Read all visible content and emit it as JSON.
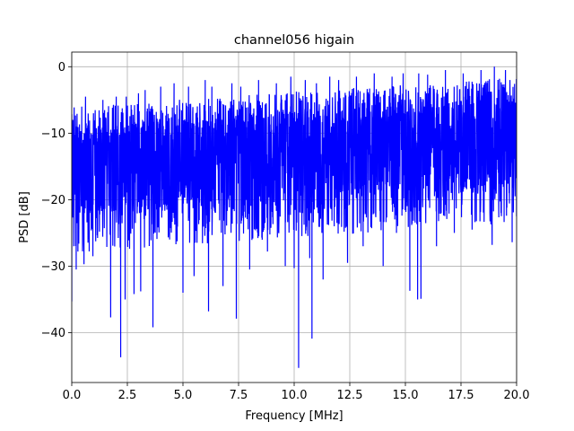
{
  "chart_data": {
    "type": "line",
    "title": "channel056 higain",
    "xlabel": "Frequency [MHz]",
    "ylabel": "PSD [dB]",
    "xlim": [
      0,
      20
    ],
    "ylim": [
      -47.5,
      2.2
    ],
    "grid": true,
    "x_ticks": [
      0.0,
      2.5,
      5.0,
      7.5,
      10.0,
      12.5,
      15.0,
      17.5,
      20.0
    ],
    "x_tick_labels": [
      "0.0",
      "2.5",
      "5.0",
      "7.5",
      "10.0",
      "12.5",
      "15.0",
      "17.5",
      "20.0"
    ],
    "y_ticks": [
      0,
      -10,
      -20,
      -30,
      -40
    ],
    "y_tick_labels": [
      "0",
      "−10",
      "−20",
      "−30",
      "−40"
    ],
    "series": [
      {
        "color": "#0000ff",
        "description_points": {
          "x": [
            0.0,
            0.05,
            0.2,
            0.45,
            0.55,
            0.62,
            0.95,
            1.4,
            1.75,
            2.0,
            2.2,
            2.4,
            2.45,
            2.8,
            3.0,
            3.1,
            3.3,
            3.65,
            4.0,
            4.4,
            4.6,
            5.0,
            5.25,
            5.5,
            6.0,
            6.15,
            6.3,
            6.8,
            7.2,
            7.4,
            7.6,
            8.0,
            8.4,
            8.8,
            9.2,
            9.6,
            9.85,
            10.0,
            10.2,
            10.5,
            10.7,
            10.8,
            11.0,
            11.3,
            11.6,
            11.8,
            12.0,
            12.4,
            12.8,
            13.1,
            13.6,
            14.0,
            14.4,
            14.6,
            14.9,
            15.2,
            15.55,
            15.6,
            15.7,
            16.0,
            16.4,
            16.8,
            17.2,
            17.6,
            18.0,
            18.4,
            18.9,
            19.0,
            19.3,
            19.5,
            19.8,
            20.0
          ],
          "y": [
            -35.3,
            -8.0,
            -30.5,
            -6.0,
            -29.7,
            -4.5,
            -28.5,
            -5.0,
            -37.7,
            -4.5,
            -43.7,
            -35.0,
            -4.5,
            -34.2,
            -4.0,
            -33.8,
            -3.5,
            -39.2,
            -3.0,
            -26.0,
            -2.5,
            -34.0,
            -3.0,
            -31.5,
            -2.0,
            -36.8,
            -3.0,
            -33.0,
            -2.5,
            -37.9,
            -3.0,
            -30.5,
            -2.0,
            -27.8,
            -2.5,
            -30.0,
            -1.5,
            -30.3,
            -45.3,
            -2.0,
            -28.8,
            -40.9,
            -2.5,
            -32.0,
            -1.5,
            -24.0,
            -2.0,
            -29.5,
            -1.5,
            -27.0,
            -1.0,
            -30.0,
            -1.5,
            -25.0,
            -1.0,
            -33.7,
            -35.0,
            -1.0,
            -34.9,
            -1.2,
            -27.0,
            -0.5,
            -25.0,
            -1.0,
            -24.5,
            -0.5,
            -26.8,
            0.0,
            -22.0,
            -0.5,
            -26.4,
            -22.5
          ]
        }
      }
    ]
  }
}
